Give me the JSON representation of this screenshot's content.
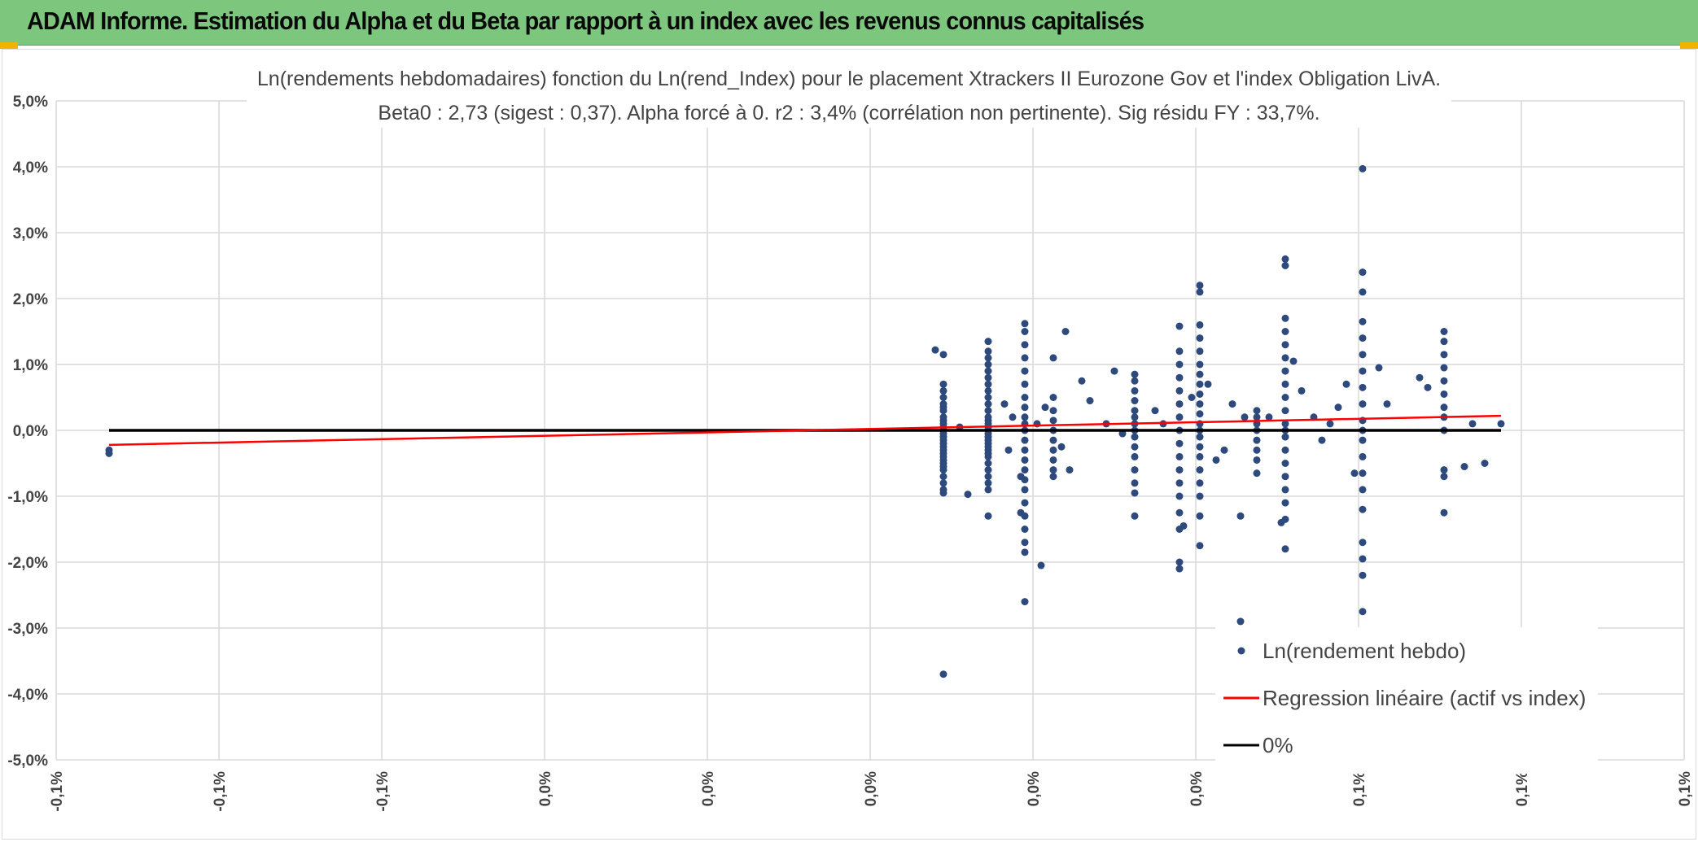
{
  "header": {
    "title": "ADAM Informe. Estimation du Alpha et du Beta par rapport à un index avec les revenus connus capitalisés",
    "background": "#7dc67e",
    "corner_color": "#f0b400"
  },
  "chart_data": {
    "type": "scatter",
    "title_lines": [
      "Ln(rendements hebdomadaires) fonction du Ln(rend_Index) pour le placement Xtrackers II Eurozone Gov et l'index Obligation LivA.",
      "Beta0 : 2,73 (sigest : 0,37). Alpha forcé à 0. r2 : 3,4% (corrélation non pertinente). Sig résidu FY : 33,7%."
    ],
    "xlabel": "",
    "ylabel": "",
    "xlim": [
      -0.1,
      0.1
    ],
    "ylim": [
      -5.0,
      5.0
    ],
    "x_tick_labels": [
      "-0,1%",
      "-0,1%",
      "-0,1%",
      "0,0%",
      "0,0%",
      "0,0%",
      "0,0%",
      "0,0%",
      "0,1%",
      "0,1%",
      "0,1%"
    ],
    "y_tick_labels": [
      "5,0%",
      "4,0%",
      "3,0%",
      "2,0%",
      "1,0%",
      "0,0%",
      "-1,0%",
      "-2,0%",
      "-3,0%",
      "-4,0%",
      "-5,0%"
    ],
    "grid": true,
    "legend_position": "bottom-right",
    "series": [
      {
        "name": "Ln(rendement hebdo)",
        "kind": "scatter",
        "color": "#2e4a7d",
        "columns": [
          {
            "x": 0.009,
            "y": [
              -3.7,
              -0.95,
              -0.9,
              -0.8,
              -0.7,
              -0.6,
              -0.55,
              -0.5,
              -0.45,
              -0.4,
              -0.35,
              -0.3,
              -0.25,
              -0.2,
              -0.15,
              -0.1,
              -0.05,
              0.0,
              0.05,
              0.1,
              0.15,
              0.2,
              0.3,
              0.35,
              0.4,
              0.5,
              0.6,
              0.7,
              1.15
            ]
          },
          {
            "x": 0.0145,
            "y": [
              -1.3,
              -0.9,
              -0.8,
              -0.7,
              -0.6,
              -0.5,
              -0.4,
              -0.35,
              -0.3,
              -0.25,
              -0.2,
              -0.15,
              -0.1,
              -0.05,
              0.0,
              0.05,
              0.1,
              0.15,
              0.2,
              0.3,
              0.4,
              0.5,
              0.6,
              0.7,
              0.8,
              0.9,
              1.0,
              1.1,
              1.2,
              1.35
            ]
          },
          {
            "x": 0.019,
            "y": [
              -2.6,
              -1.85,
              -1.7,
              -1.5,
              -1.3,
              -1.1,
              -0.9,
              -0.75,
              -0.6,
              -0.45,
              -0.3,
              -0.15,
              0.0,
              0.1,
              0.2,
              0.35,
              0.5,
              0.7,
              0.9,
              1.1,
              1.3,
              1.5,
              1.62
            ]
          },
          {
            "x": 0.0225,
            "y": [
              -0.7,
              -0.6,
              -0.45,
              -0.3,
              -0.15,
              0.0,
              0.15,
              0.3,
              0.5,
              1.1
            ]
          },
          {
            "x": 0.0325,
            "y": [
              -1.3,
              -0.95,
              -0.8,
              -0.6,
              -0.4,
              -0.25,
              -0.1,
              0.0,
              0.1,
              0.2,
              0.3,
              0.45,
              0.6,
              0.75,
              0.85
            ]
          },
          {
            "x": 0.038,
            "y": [
              -2.1,
              -2.0,
              -1.5,
              -1.25,
              -1.0,
              -0.8,
              -0.6,
              -0.4,
              -0.2,
              0.0,
              0.2,
              0.4,
              0.6,
              0.8,
              1.0,
              1.2,
              1.58
            ]
          },
          {
            "x": 0.0405,
            "y": [
              -1.75,
              -1.3,
              -1.0,
              -0.8,
              -0.6,
              -0.4,
              -0.25,
              -0.1,
              0.0,
              0.1,
              0.25,
              0.4,
              0.55,
              0.7,
              0.85,
              1.0,
              1.2,
              1.4,
              1.6,
              2.1,
              2.2
            ]
          },
          {
            "x": 0.0475,
            "y": [
              -0.65,
              -0.45,
              -0.3,
              -0.15,
              0.0,
              0.1,
              0.2,
              0.3
            ]
          },
          {
            "x": 0.051,
            "y": [
              -1.8,
              -1.35,
              -1.1,
              -0.9,
              -0.7,
              -0.5,
              -0.3,
              -0.1,
              0.0,
              0.1,
              0.3,
              0.5,
              0.7,
              0.9,
              1.1,
              1.3,
              1.5,
              1.7,
              2.5,
              2.6
            ]
          },
          {
            "x": 0.0605,
            "y": [
              -3.35,
              -2.75,
              -2.2,
              -1.95,
              -1.7,
              -1.2,
              -0.9,
              -0.65,
              -0.4,
              -0.15,
              0.0,
              0.15,
              0.4,
              0.65,
              0.9,
              1.15,
              1.4,
              1.65,
              2.1,
              2.4,
              3.97
            ]
          },
          {
            "x": 0.0705,
            "y": [
              -1.25,
              -0.7,
              -0.6,
              0.0,
              0.2,
              0.35,
              0.55,
              0.75,
              0.95,
              1.15,
              1.35,
              1.5
            ]
          }
        ],
        "points": [
          {
            "x": -0.0935,
            "y": -0.35
          },
          {
            "x": -0.0935,
            "y": -0.3
          },
          {
            "x": 0.008,
            "y": 1.22
          },
          {
            "x": 0.011,
            "y": 0.05
          },
          {
            "x": 0.012,
            "y": -0.97
          },
          {
            "x": 0.0165,
            "y": 0.4
          },
          {
            "x": 0.017,
            "y": -0.3
          },
          {
            "x": 0.0175,
            "y": 0.2
          },
          {
            "x": 0.0185,
            "y": -0.7
          },
          {
            "x": 0.0185,
            "y": -1.25
          },
          {
            "x": 0.0205,
            "y": 0.1
          },
          {
            "x": 0.021,
            "y": -2.05
          },
          {
            "x": 0.0215,
            "y": 0.35
          },
          {
            "x": 0.0235,
            "y": -0.25
          },
          {
            "x": 0.024,
            "y": 1.5
          },
          {
            "x": 0.0245,
            "y": -0.6
          },
          {
            "x": 0.026,
            "y": 0.75
          },
          {
            "x": 0.027,
            "y": 0.45
          },
          {
            "x": 0.029,
            "y": 0.1
          },
          {
            "x": 0.03,
            "y": 0.9
          },
          {
            "x": 0.031,
            "y": -0.05
          },
          {
            "x": 0.035,
            "y": 0.3
          },
          {
            "x": 0.036,
            "y": 0.1
          },
          {
            "x": 0.0385,
            "y": -1.45
          },
          {
            "x": 0.0395,
            "y": 0.5
          },
          {
            "x": 0.0415,
            "y": 0.7
          },
          {
            "x": 0.0425,
            "y": -0.45
          },
          {
            "x": 0.0435,
            "y": -0.3
          },
          {
            "x": 0.0445,
            "y": 0.4
          },
          {
            "x": 0.0455,
            "y": -1.3
          },
          {
            "x": 0.0455,
            "y": -2.9
          },
          {
            "x": 0.046,
            "y": 0.2
          },
          {
            "x": 0.049,
            "y": 0.2
          },
          {
            "x": 0.0505,
            "y": -1.4
          },
          {
            "x": 0.052,
            "y": 1.05
          },
          {
            "x": 0.053,
            "y": 0.6
          },
          {
            "x": 0.0545,
            "y": 0.2
          },
          {
            "x": 0.0555,
            "y": -0.15
          },
          {
            "x": 0.0565,
            "y": 0.1
          },
          {
            "x": 0.0575,
            "y": 0.35
          },
          {
            "x": 0.0585,
            "y": 0.7
          },
          {
            "x": 0.0595,
            "y": -0.65
          },
          {
            "x": 0.0625,
            "y": 0.95
          },
          {
            "x": 0.0635,
            "y": 0.4
          },
          {
            "x": 0.0675,
            "y": 0.8
          },
          {
            "x": 0.0685,
            "y": 0.65
          },
          {
            "x": 0.073,
            "y": -0.55
          },
          {
            "x": 0.074,
            "y": 0.1
          },
          {
            "x": 0.0755,
            "y": -0.5
          },
          {
            "x": 0.0775,
            "y": 0.1
          }
        ]
      },
      {
        "name": "Regression linéaire (actif vs index)",
        "kind": "line",
        "color": "#ff0000",
        "x": [
          -0.0935,
          0.0775
        ],
        "y": [
          -0.22,
          0.22
        ]
      },
      {
        "name": "0%",
        "kind": "line",
        "color": "#000000",
        "x": [
          -0.0935,
          0.0775
        ],
        "y": [
          0.0,
          0.0
        ]
      }
    ]
  }
}
